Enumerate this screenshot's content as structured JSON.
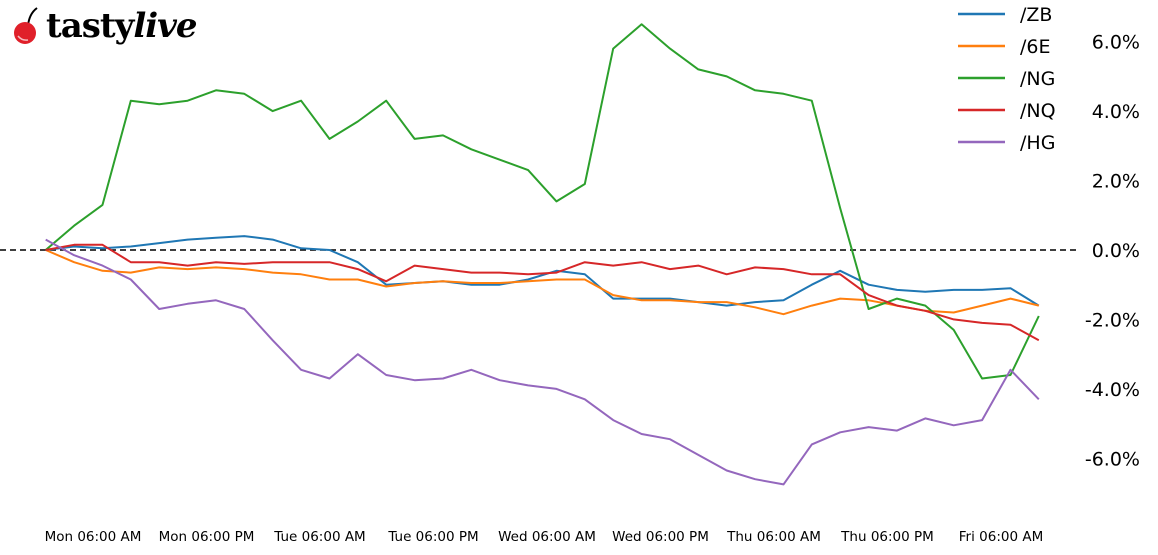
{
  "logo": {
    "text_main": "tasty",
    "text_italic": "live",
    "icon": "cherry-icon",
    "color": "#e0202a"
  },
  "chart_data": {
    "type": "line",
    "title": "",
    "xlabel": "",
    "ylabel": "",
    "ylim": [
      -7.2,
      7.2
    ],
    "y_unit": "%",
    "zero_line": {
      "value": 0,
      "style": "dashed",
      "color": "#000000"
    },
    "grid": false,
    "legend_position": "top-right",
    "y_ticks": [
      6,
      4,
      2,
      0,
      -2,
      -4,
      -6
    ],
    "y_tick_labels": [
      "6.0%",
      "4.0%",
      "2.0%",
      "0.0%",
      "-2.0%",
      "-4.0%",
      "-6.0%"
    ],
    "x_ticks": [
      "Mon 06:00",
      "Mon 18:00",
      "Tue 06:00",
      "Tue 18:00",
      "Wed 06:00",
      "Wed 18:00",
      "Thu 06:00",
      "Thu 18:00",
      "Fri 06:00"
    ],
    "x_tick_labels": [
      "Mon 06:00 AM",
      "Mon 06:00 PM",
      "Tue 06:00 AM",
      "Tue 06:00 PM",
      "Wed 06:00 AM",
      "Wed 06:00 PM",
      "Thu 06:00 AM",
      "Thu 06:00 PM",
      "Fri 06:00 AM"
    ],
    "x": [
      "Mon 01:00",
      "Mon 04:00",
      "Mon 07:00",
      "Mon 10:00",
      "Mon 13:00",
      "Mon 16:00",
      "Mon 19:00",
      "Mon 22:00",
      "Tue 01:00",
      "Tue 04:00",
      "Tue 07:00",
      "Tue 10:00",
      "Tue 13:00",
      "Tue 16:00",
      "Tue 19:00",
      "Tue 22:00",
      "Wed 01:00",
      "Wed 04:00",
      "Wed 07:00",
      "Wed 10:00",
      "Wed 13:00",
      "Wed 16:00",
      "Wed 19:00",
      "Wed 22:00",
      "Thu 01:00",
      "Thu 04:00",
      "Thu 07:00",
      "Thu 10:00",
      "Thu 13:00",
      "Thu 16:00",
      "Thu 19:00",
      "Thu 22:00",
      "Fri 01:00",
      "Fri 04:00",
      "Fri 07:00",
      "Fri 10:00"
    ],
    "series": [
      {
        "name": "/ZB",
        "color": "#1f77b4",
        "values": [
          0,
          0.1,
          0.05,
          0.1,
          0.2,
          0.3,
          0.35,
          0.4,
          0.3,
          0.05,
          0,
          -0.35,
          -1.0,
          -0.95,
          -0.9,
          -1.0,
          -1.0,
          -0.85,
          -0.6,
          -0.7,
          -1.4,
          -1.4,
          -1.4,
          -1.5,
          -1.6,
          -1.5,
          -1.45,
          -1.0,
          -0.6,
          -1.0,
          -1.15,
          -1.2,
          -1.15,
          -1.15,
          -1.1,
          -1.6
        ]
      },
      {
        "name": "/6E",
        "color": "#ff7f0e",
        "values": [
          0,
          -0.35,
          -0.6,
          -0.65,
          -0.5,
          -0.55,
          -0.5,
          -0.55,
          -0.65,
          -0.7,
          -0.85,
          -0.85,
          -1.05,
          -0.95,
          -0.9,
          -0.95,
          -0.95,
          -0.9,
          -0.85,
          -0.85,
          -1.3,
          -1.45,
          -1.45,
          -1.5,
          -1.5,
          -1.65,
          -1.85,
          -1.6,
          -1.4,
          -1.45,
          -1.6,
          -1.75,
          -1.8,
          -1.6,
          -1.4,
          -1.6
        ]
      },
      {
        "name": "/NG",
        "color": "#2ca02c",
        "values": [
          0,
          0.7,
          1.3,
          4.3,
          4.2,
          4.3,
          4.6,
          4.5,
          4.0,
          4.3,
          3.2,
          3.7,
          4.3,
          3.2,
          3.3,
          2.9,
          2.6,
          2.3,
          1.4,
          1.9,
          5.8,
          6.5,
          5.8,
          5.2,
          5.0,
          4.6,
          4.5,
          4.3,
          1.2,
          -1.7,
          -1.4,
          -1.6,
          -2.3,
          -3.7,
          -3.6,
          -1.9
        ]
      },
      {
        "name": "/NQ",
        "color": "#d62728",
        "values": [
          0,
          0.15,
          0.15,
          -0.35,
          -0.35,
          -0.45,
          -0.35,
          -0.4,
          -0.35,
          -0.35,
          -0.35,
          -0.55,
          -0.9,
          -0.45,
          -0.55,
          -0.65,
          -0.65,
          -0.7,
          -0.65,
          -0.35,
          -0.45,
          -0.35,
          -0.55,
          -0.45,
          -0.7,
          -0.5,
          -0.55,
          -0.7,
          -0.7,
          -1.3,
          -1.6,
          -1.75,
          -2.0,
          -2.1,
          -2.15,
          -2.6
        ]
      },
      {
        "name": "/HG",
        "color": "#9467bd",
        "values": [
          0.3,
          -0.15,
          -0.45,
          -0.85,
          -1.7,
          -1.55,
          -1.45,
          -1.7,
          -2.6,
          -3.45,
          -3.7,
          -3.0,
          -3.6,
          -3.75,
          -3.7,
          -3.45,
          -3.75,
          -3.9,
          -4.0,
          -4.3,
          -4.9,
          -5.3,
          -5.45,
          -5.9,
          -6.35,
          -6.6,
          -6.75,
          -5.6,
          -5.25,
          -5.1,
          -5.2,
          -4.85,
          -5.05,
          -4.9,
          -3.45,
          -4.3
        ]
      }
    ]
  }
}
